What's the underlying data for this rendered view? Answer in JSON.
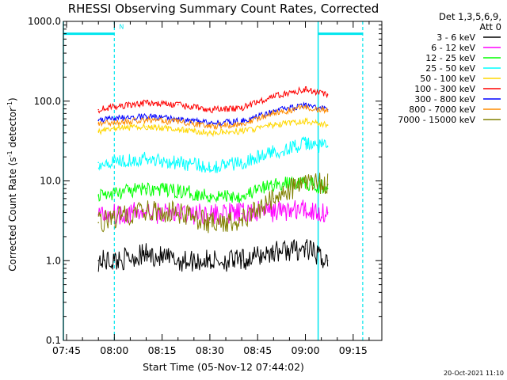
{
  "chart_data": {
    "type": "line",
    "title": "RHESSI Observing Summary Count Rates, Corrected",
    "xlabel": "Start Time (05-Nov-12 07:44:02)",
    "ylabel": "Corrected Count Rate (s",
    "ylabel_sup1": "-1",
    "ylabel_mid": " detector",
    "ylabel_sup2": "-1",
    "ylabel_end": ")",
    "y_scale": "log",
    "ylim": [
      0.1,
      1000
    ],
    "y_ticks": [
      0.1,
      1,
      10,
      100,
      1000
    ],
    "y_tick_labels": [
      "0.1",
      "1.0",
      "10.0",
      "100.0",
      "1000.0"
    ],
    "xlim": [
      "07:44",
      "09:24"
    ],
    "x_ticks": [
      "07:45",
      "08:00",
      "08:15",
      "08:30",
      "08:45",
      "09:00",
      "09:15"
    ],
    "legend_header": [
      "Det 1,3,5,6,9,",
      "Att 0"
    ],
    "legend_position": "right",
    "night_marker_label": "N",
    "timestamp": "20-Oct-2021 11:10",
    "series": [
      {
        "name": "3 - 6 keV",
        "color": "#000000",
        "x": [
          "07:55",
          "08:00",
          "08:10",
          "08:20",
          "08:30",
          "08:40",
          "08:50",
          "09:00",
          "09:07"
        ],
        "values": [
          1.0,
          1.0,
          1.2,
          1.0,
          1.0,
          1.0,
          1.3,
          1.4,
          1.0
        ]
      },
      {
        "name": "6 - 12 keV",
        "color": "#ff00ff",
        "x": [
          "07:55",
          "08:00",
          "08:10",
          "08:20",
          "08:30",
          "08:40",
          "08:50",
          "09:00",
          "09:07"
        ],
        "values": [
          3.8,
          3.9,
          4.0,
          3.9,
          3.8,
          3.9,
          4.2,
          4.3,
          4.0
        ]
      },
      {
        "name": "12 - 25 keV",
        "color": "#00ff00",
        "x": [
          "07:55",
          "08:00",
          "08:10",
          "08:20",
          "08:30",
          "08:40",
          "08:50",
          "09:00",
          "09:07"
        ],
        "values": [
          6.5,
          7.0,
          8.0,
          7.5,
          6.5,
          6.5,
          9.0,
          9.5,
          8.0
        ]
      },
      {
        "name": "25 - 50 keV",
        "color": "#00ffff",
        "x": [
          "07:55",
          "08:00",
          "08:10",
          "08:20",
          "08:30",
          "08:40",
          "08:50",
          "09:00",
          "09:07"
        ],
        "values": [
          17,
          18,
          19,
          17,
          15,
          17,
          23,
          29,
          27
        ]
      },
      {
        "name": "50 - 100 keV",
        "color": "#ffd700",
        "x": [
          "07:55",
          "08:00",
          "08:10",
          "08:20",
          "08:30",
          "08:40",
          "08:50",
          "09:00",
          "09:07"
        ],
        "values": [
          42,
          45,
          48,
          44,
          40,
          42,
          50,
          56,
          50
        ]
      },
      {
        "name": "100 - 300 keV",
        "color": "#ff0000",
        "x": [
          "07:55",
          "08:00",
          "08:10",
          "08:20",
          "08:30",
          "08:40",
          "08:50",
          "09:00",
          "09:07"
        ],
        "values": [
          78,
          85,
          95,
          90,
          78,
          82,
          115,
          140,
          120
        ]
      },
      {
        "name": "300 - 800 keV",
        "color": "#0000ff",
        "x": [
          "07:55",
          "08:00",
          "08:10",
          "08:20",
          "08:30",
          "08:40",
          "08:50",
          "09:00",
          "09:07"
        ],
        "values": [
          57,
          60,
          65,
          60,
          53,
          56,
          75,
          88,
          78
        ]
      },
      {
        "name": "800 - 7000 keV",
        "color": "#ff8c00",
        "x": [
          "07:55",
          "08:00",
          "08:10",
          "08:20",
          "08:30",
          "08:40",
          "08:50",
          "09:00",
          "09:07"
        ],
        "values": [
          52,
          54,
          58,
          55,
          48,
          52,
          70,
          85,
          75
        ]
      },
      {
        "name": "7000 - 15000 keV",
        "color": "#808000",
        "x": [
          "07:55",
          "08:00",
          "08:10",
          "08:20",
          "08:30",
          "08:40",
          "08:50",
          "09:00",
          "09:07"
        ],
        "values": [
          3.0,
          3.5,
          4.2,
          4.0,
          3.0,
          3.2,
          6.0,
          9.5,
          9.0
        ]
      }
    ],
    "overlays": {
      "color": "#00e5ee",
      "solid_lines": [
        "07:44",
        "09:04"
      ],
      "dashed_lines": [
        "08:00",
        "09:18"
      ],
      "night_bars": [
        [
          "07:44",
          "08:00"
        ],
        [
          "09:04",
          "09:18"
        ]
      ],
      "night_bar_value": 700
    },
    "grid": false
  }
}
